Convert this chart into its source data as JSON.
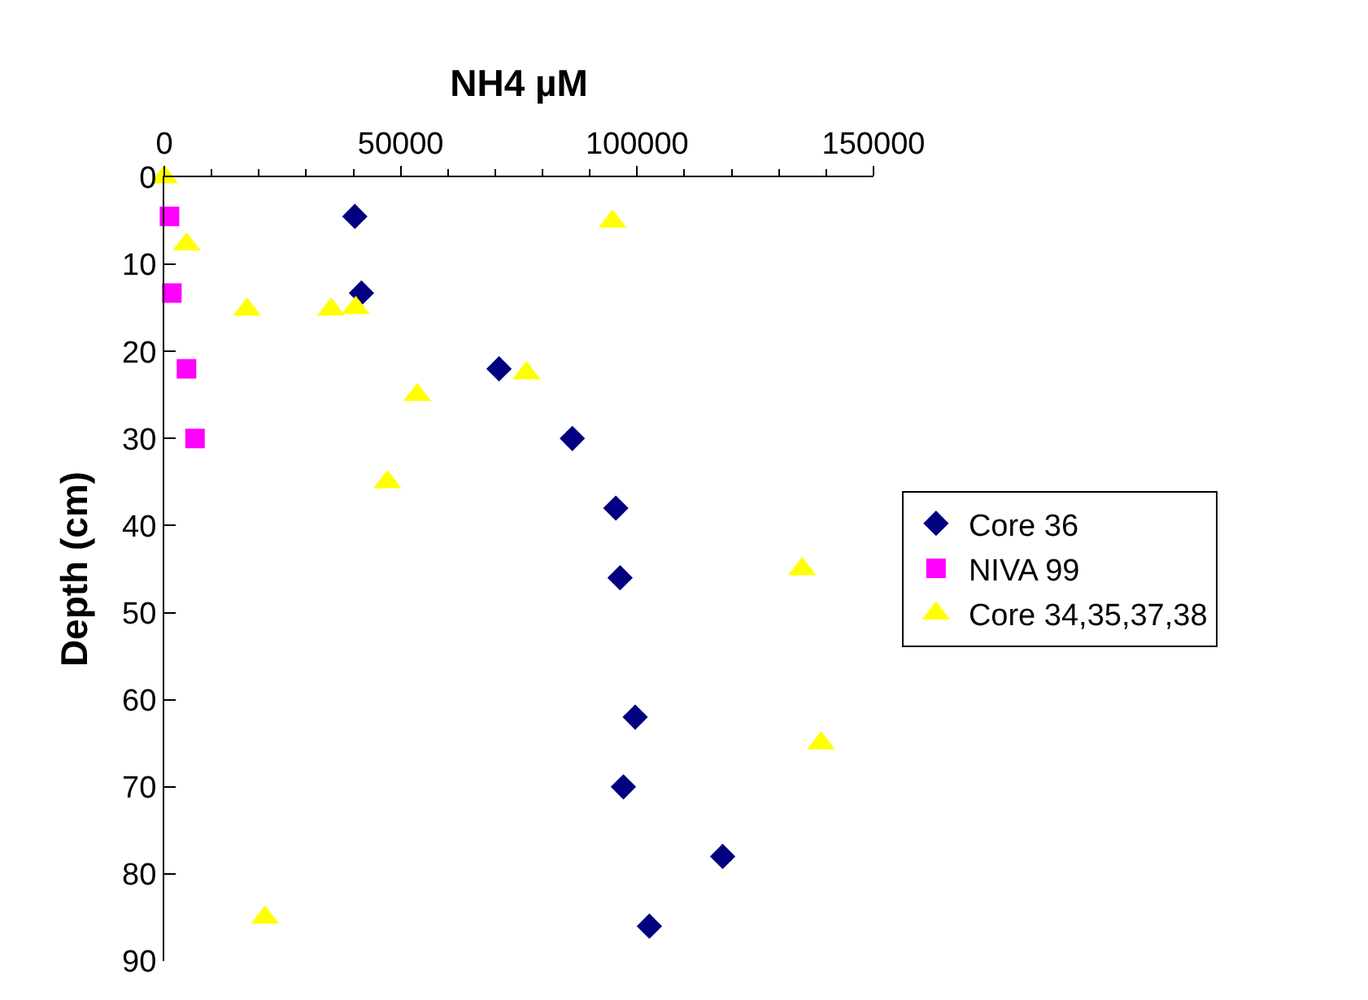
{
  "chart_data": {
    "type": "scatter",
    "xlabel": "NH4 µM",
    "ylabel": "Depth (cm)",
    "xlim": [
      0,
      150000
    ],
    "xticks": [
      0,
      50000,
      100000,
      150000
    ],
    "ylim": [
      90,
      0
    ],
    "yticks": [
      0,
      10,
      20,
      30,
      40,
      50,
      60,
      70,
      80,
      90
    ],
    "grid": false,
    "legend": "right",
    "series": [
      {
        "name": "Core 36",
        "color": "#000080",
        "marker": "diamond",
        "x": [
          40300,
          41700,
          70800,
          86300,
          95500,
          96400,
          99600,
          97100,
          118100,
          102600
        ],
        "values": [
          4.5,
          13.3,
          22,
          30,
          38,
          46,
          62,
          70,
          78,
          86
        ]
      },
      {
        "name": "NIVA 99",
        "color": "#ff00ff",
        "marker": "square",
        "x": [
          1100,
          1600,
          4700,
          6500
        ],
        "values": [
          4.5,
          13.3,
          22,
          30
        ]
      },
      {
        "name": "Core 34,35,37,38",
        "color": "#ffff00",
        "marker": "triangle",
        "x": [
          0,
          4700,
          17500,
          35300,
          40500,
          94800,
          76600,
          53500,
          47200,
          134900,
          138900,
          21300
        ],
        "values": [
          0,
          7.7,
          15.2,
          15.2,
          15,
          5.1,
          22.5,
          25,
          35,
          45,
          65,
          85
        ]
      }
    ]
  }
}
